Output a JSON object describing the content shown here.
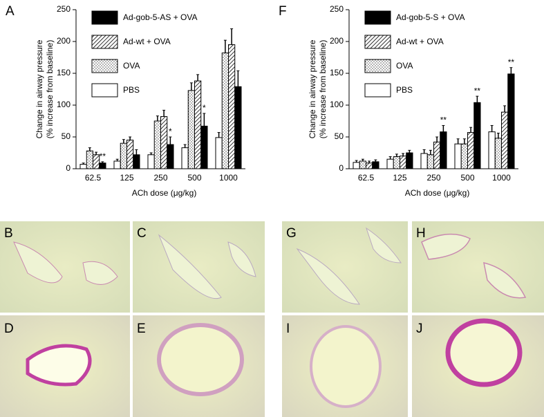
{
  "chart_data": [
    {
      "type": "bar",
      "panel_label": "A",
      "x_label": "ACh dose (μg/kg)",
      "y_label": [
        "Change in airway pressure",
        "(% increase from baseline)"
      ],
      "categories": [
        "62.5",
        "125",
        "250",
        "500",
        "1000"
      ],
      "series": [
        {
          "name": "PBS",
          "color": "#ffffff",
          "pattern": "none",
          "values": [
            7,
            12,
            22,
            33,
            49
          ],
          "errors": [
            2,
            3,
            3,
            5,
            8
          ]
        },
        {
          "name": "OVA",
          "color": "#ffffff",
          "pattern": "dots",
          "values": [
            28,
            40,
            75,
            123,
            182
          ],
          "errors": [
            5,
            6,
            8,
            12,
            20
          ]
        },
        {
          "name": "Ad-wt + OVA",
          "color": "#ffffff",
          "pattern": "hatch",
          "values": [
            22,
            45,
            82,
            138,
            195
          ],
          "errors": [
            4,
            5,
            10,
            10,
            25
          ]
        },
        {
          "name": "Ad-gob-5-AS + OVA",
          "color": "#000000",
          "pattern": "solid",
          "values": [
            9,
            22,
            38,
            67,
            129
          ],
          "errors": [
            2,
            8,
            12,
            20,
            25
          ]
        }
      ],
      "significance": [
        {
          "series": 3,
          "category": 0,
          "label": "**"
        },
        {
          "series": 3,
          "category": 2,
          "label": "*"
        },
        {
          "series": 3,
          "category": 3,
          "label": "*"
        }
      ],
      "ylim": [
        0,
        250
      ],
      "yticks": [
        0,
        50,
        100,
        150,
        200,
        250
      ]
    },
    {
      "type": "bar",
      "panel_label": "F",
      "x_label": "ACh dose (μg/kg)",
      "y_label": [
        "Change in airway pressure",
        "(% increase from baseline)"
      ],
      "categories": [
        "62.5",
        "125",
        "250",
        "500",
        "1000"
      ],
      "series": [
        {
          "name": "PBS",
          "color": "#ffffff",
          "pattern": "none",
          "values": [
            10,
            15,
            24,
            39,
            58
          ],
          "errors": [
            3,
            4,
            6,
            8,
            10
          ]
        },
        {
          "name": "OVA",
          "color": "#ffffff",
          "pattern": "dots",
          "values": [
            12,
            19,
            22,
            39,
            48
          ],
          "errors": [
            3,
            4,
            7,
            8,
            8
          ]
        },
        {
          "name": "Ad-wt + OVA",
          "color": "#ffffff",
          "pattern": "hatch",
          "values": [
            9,
            20,
            42,
            57,
            89
          ],
          "errors": [
            3,
            4,
            8,
            8,
            10
          ]
        },
        {
          "name": "Ad-gob-5-S + OVA",
          "color": "#000000",
          "pattern": "solid",
          "values": [
            11,
            25,
            58,
            104,
            149
          ],
          "errors": [
            3,
            4,
            10,
            10,
            10
          ]
        }
      ],
      "significance": [
        {
          "series": 3,
          "category": 2,
          "label": "**"
        },
        {
          "series": 3,
          "category": 3,
          "label": "**"
        },
        {
          "series": 3,
          "category": 4,
          "label": "**"
        }
      ],
      "ylim": [
        0,
        250
      ],
      "yticks": [
        0,
        50,
        100,
        150,
        200,
        250
      ]
    }
  ],
  "panels": [
    {
      "label": "B"
    },
    {
      "label": "C"
    },
    {
      "label": "G"
    },
    {
      "label": "H"
    },
    {
      "label": "D"
    },
    {
      "label": "E"
    },
    {
      "label": "I"
    },
    {
      "label": "J"
    }
  ]
}
